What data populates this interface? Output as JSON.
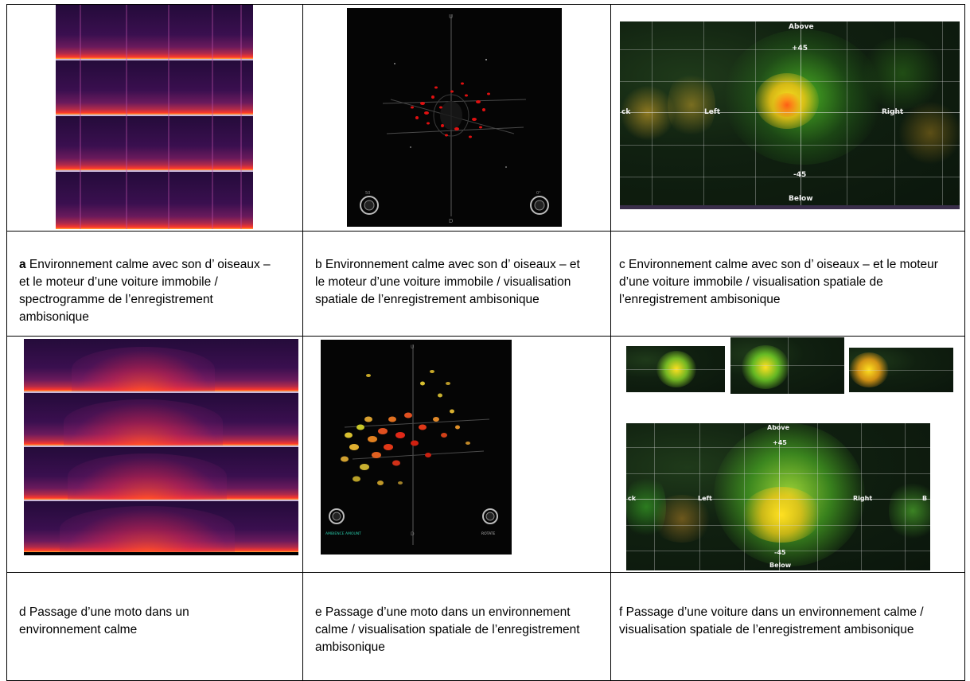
{
  "captions": {
    "a_prefix": "a",
    "a_text": " Environnement calme avec son d’ oiseaux – et le moteur d’une voiture immobile / spectrogramme de l’enregistrement ambisonique",
    "b": "b Environnement calme avec son d’ oiseaux – et le moteur d’une voiture immobile / visualisation spatiale de l’enregistrement ambisonique",
    "c": "c Environnement calme avec son d’ oiseaux – et le moteur d’une voiture immobile / visualisation spatiale de l’enregistrement ambisonique",
    "d": "d Passage d’une moto dans un environnement calme",
    "e": "e Passage d’une moto dans un environnement calme / visualisation spatiale de l’enregistrement ambisonique",
    "f": "f Passage d’une voiture dans un environnement calme / visualisation spatiale  de l’enregistrement ambisonique"
  },
  "heatmap_labels": {
    "above": "Above",
    "plus45": "+45",
    "left": "Left",
    "right": "Right",
    "minus45": "-45",
    "below": "Below",
    "back_c": "ck",
    "back_f": "ck",
    "edge_f": "B"
  },
  "viz_labels": {
    "up": "U",
    "down": "D",
    "knob_left_top": "50",
    "knob_right_top": "0°",
    "knob_left_scale_min": "0",
    "knob_left_scale_max": "100",
    "ambience_label": "AMBIENCE AMOUNT",
    "rotate_label": "ROTATE"
  },
  "colors": {
    "spectrogram_hot": "#ff3a2a",
    "spectrogram_bg": "#2a0c40",
    "heat_green": "#4cff2a",
    "heat_yellow": "#ffe020",
    "heat_red": "#ff5010",
    "viz_red": "#e01010",
    "viz_accent": "#29c7a8"
  }
}
